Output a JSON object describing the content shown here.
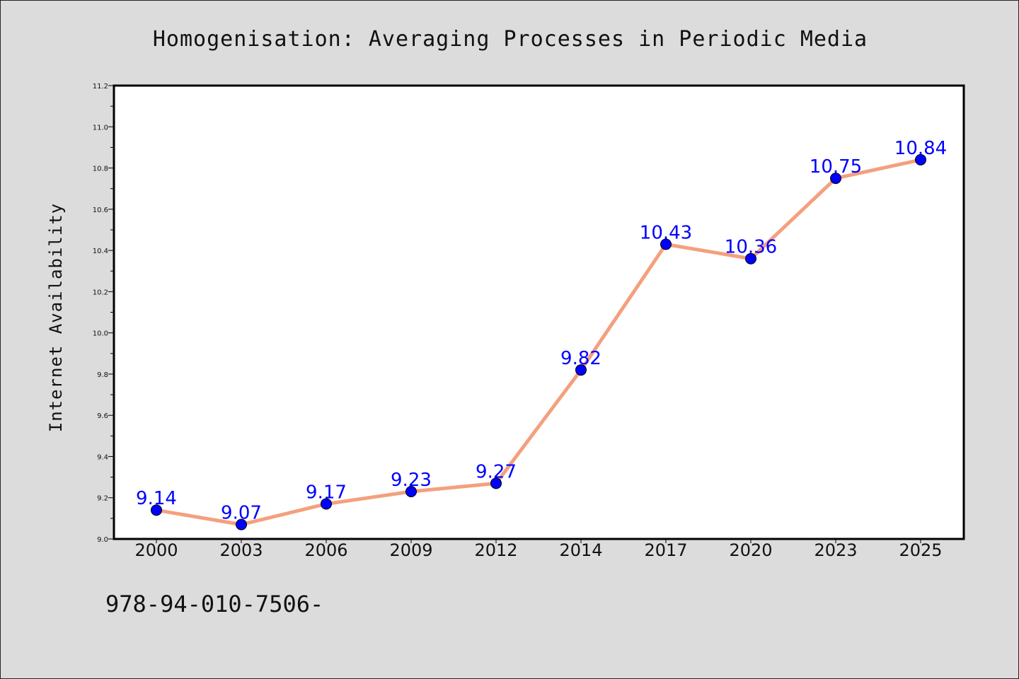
{
  "chart_data": {
    "type": "line",
    "title": "Homogenisation: Averaging Processes in Periodic Media",
    "xlabel": "",
    "ylabel": "Internet Availability",
    "categories": [
      "2000",
      "2003",
      "2006",
      "2009",
      "2012",
      "2014",
      "2017",
      "2020",
      "2023",
      "2025"
    ],
    "series": [
      {
        "values": [
          9.14,
          9.07,
          9.17,
          9.23,
          9.27,
          9.82,
          10.43,
          10.36,
          10.75,
          10.84
        ],
        "data_labels": [
          "9.14",
          "9.07",
          "9.17",
          "9.23",
          "9.27",
          "9.82",
          "10.43",
          "10.36",
          "10.75",
          "10.84"
        ],
        "line_color": "#f4a07e",
        "marker_color": "#0000ff"
      }
    ],
    "ylim": [
      9.0,
      11.2
    ],
    "yticks": [
      "9.0",
      "9.2",
      "9.4",
      "9.6",
      "9.8",
      "10.0",
      "10.2",
      "10.4",
      "10.6",
      "10.8",
      "11.0",
      "11.2"
    ],
    "label_color": "#0000ff",
    "grid": false,
    "legend": "none"
  },
  "footnote": "978-94-010-7506-"
}
